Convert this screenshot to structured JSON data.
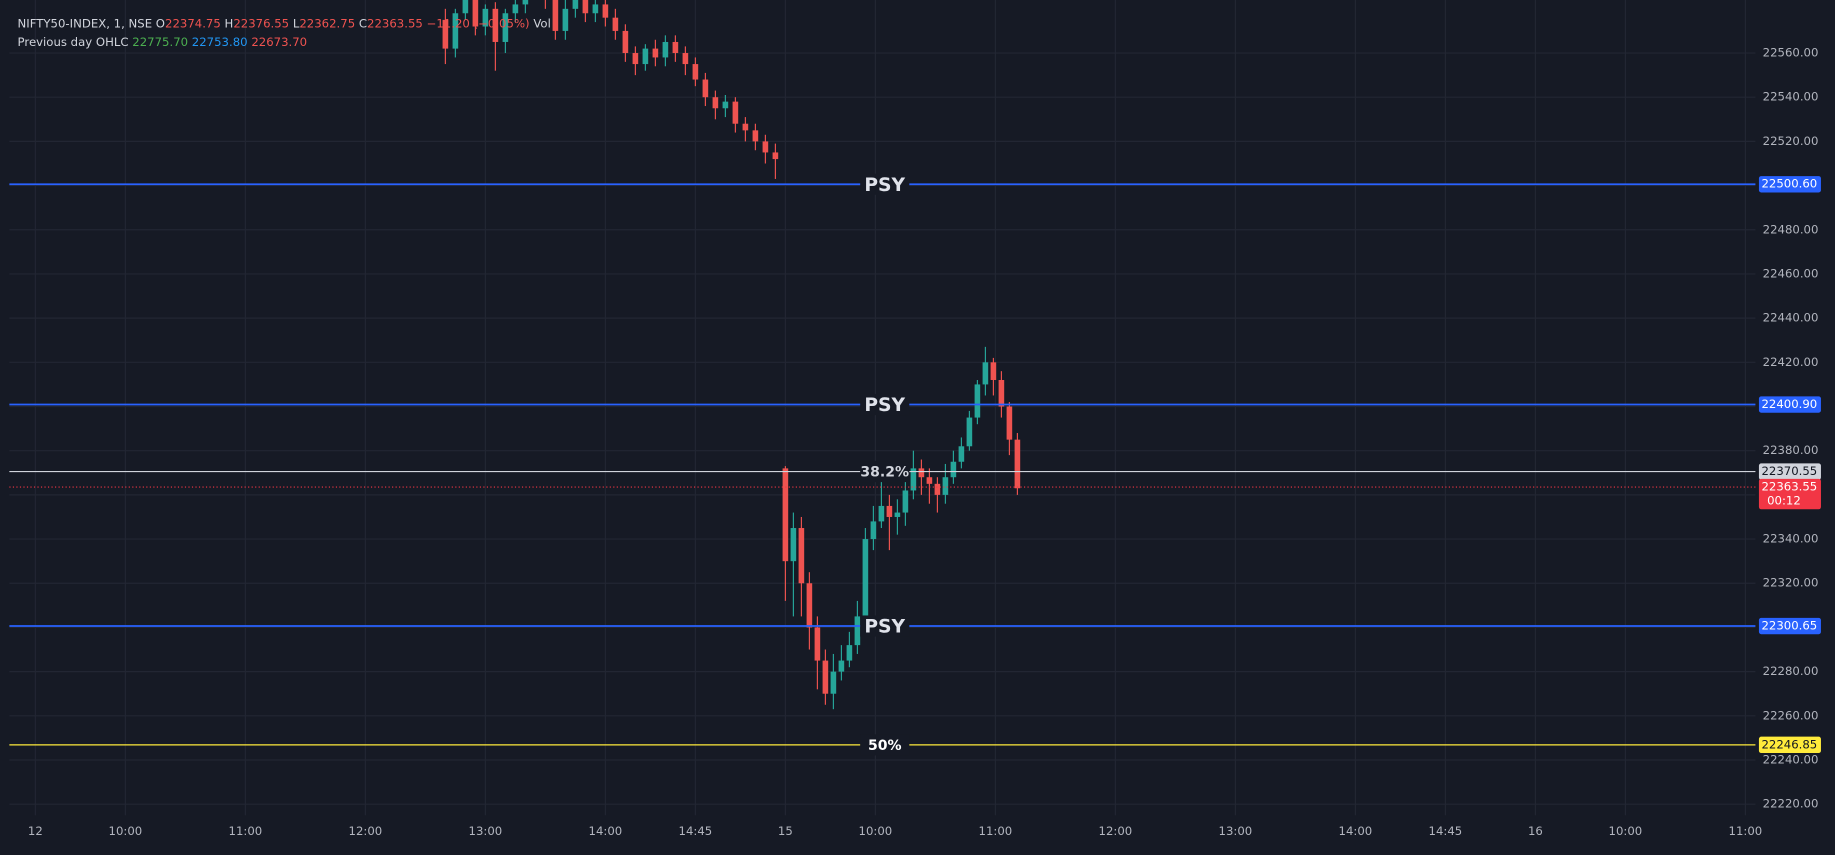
{
  "chart_data": {
    "type": "candlestick",
    "header": {
      "symbol": "NIFTY50-INDEX, 1, NSE",
      "o_label": "O",
      "o_value": "22374.75",
      "h_label": "H",
      "h_value": "22376.55",
      "l_label": "L",
      "l_value": "22362.75",
      "c_label": "C",
      "c_value": "22363.55",
      "change": "−11.20 (−0.05%)",
      "vol_label": "Vol",
      "prev_label": "Previous day OHLC",
      "prev_values": [
        "22775.70",
        "22753.80",
        "22673.70"
      ],
      "prev_colors": [
        "#4caf50",
        "#2196f3",
        "#ef5350"
      ]
    },
    "x": [
      205,
      210,
      215,
      220,
      225,
      230,
      235,
      240,
      245,
      250,
      255,
      260,
      265,
      270,
      275,
      280,
      285,
      290,
      295,
      300,
      305,
      310,
      315,
      320,
      325,
      330,
      335,
      340,
      345,
      350,
      355,
      360,
      365,
      370,
      375,
      379,
      383,
      387,
      391,
      395,
      399,
      403,
      407,
      411,
      415,
      419,
      423,
      427,
      431,
      435,
      439,
      443,
      447,
      451,
      455,
      459,
      463,
      467,
      471,
      475,
      479,
      483,
      487,
      491
    ],
    "open": [
      22575,
      22562,
      22578,
      22585,
      22572,
      22580,
      22565,
      22578,
      22582,
      22588,
      22590,
      22584,
      22570,
      22580,
      22586,
      22578,
      22582,
      22576,
      22570,
      22560,
      22555,
      22562,
      22558,
      22565,
      22560,
      22555,
      22548,
      22540,
      22535,
      22538,
      22528,
      22525,
      22520,
      22515,
      22372,
      22330,
      22345,
      22320,
      22300,
      22285,
      22270,
      22280,
      22285,
      22292,
      22305,
      22340,
      22348,
      22355,
      22350,
      22352,
      22362,
      22372,
      22368,
      22365,
      22360,
      22368,
      22375,
      22382,
      22395,
      22410,
      22420,
      22412,
      22400,
      22385
    ],
    "high": [
      22580,
      22580,
      22588,
      22590,
      22582,
      22583,
      22580,
      22585,
      22592,
      22594,
      22594,
      22588,
      22584,
      22590,
      22590,
      22585,
      22586,
      22580,
      22573,
      22563,
      22564,
      22566,
      22568,
      22568,
      22563,
      22558,
      22551,
      22543,
      22541,
      22540,
      22531,
      22528,
      22523,
      22519,
      22373,
      22352,
      22350,
      22325,
      22305,
      22290,
      22288,
      22292,
      22298,
      22312,
      22345,
      22355,
      22372,
      22360,
      22358,
      22368,
      22380,
      22376,
      22372,
      22368,
      22374,
      22380,
      22386,
      22398,
      22412,
      22427,
      22422,
      22416,
      22402,
      22388
    ],
    "low": [
      22555,
      22558,
      22575,
      22568,
      22568,
      22552,
      22560,
      22574,
      22578,
      22584,
      22580,
      22566,
      22566,
      22576,
      22574,
      22574,
      22572,
      22566,
      22556,
      22550,
      22552,
      22554,
      22554,
      22556,
      22550,
      22545,
      22536,
      22530,
      22531,
      22524,
      22520,
      22516,
      22510,
      22503,
      22312,
      22305,
      22305,
      22290,
      22272,
      22265,
      22263,
      22276,
      22282,
      22288,
      22300,
      22335,
      22345,
      22335,
      22342,
      22346,
      22358,
      22360,
      22356,
      22352,
      22356,
      22365,
      22372,
      22380,
      22392,
      22405,
      22405,
      22395,
      22378,
      22360
    ],
    "close": [
      22562,
      22578,
      22585,
      22572,
      22580,
      22565,
      22578,
      22582,
      22588,
      22590,
      22584,
      22570,
      22580,
      22586,
      22578,
      22582,
      22576,
      22570,
      22560,
      22555,
      22562,
      22558,
      22565,
      22560,
      22555,
      22548,
      22540,
      22535,
      22538,
      22528,
      22525,
      22520,
      22515,
      22512,
      22330,
      22345,
      22320,
      22300,
      22285,
      22270,
      22280,
      22285,
      22292,
      22305,
      22340,
      22348,
      22355,
      22350,
      22352,
      22362,
      22372,
      22368,
      22365,
      22360,
      22368,
      22375,
      22382,
      22395,
      22410,
      22420,
      22412,
      22400,
      22385,
      22363
    ],
    "up_color": "#26a69a",
    "down_color": "#ef5350",
    "xlim": [
      -13,
      860
    ],
    "xticks": [
      {
        "value": 0,
        "label": "12"
      },
      {
        "value": 45,
        "label": "10:00"
      },
      {
        "value": 105,
        "label": "11:00"
      },
      {
        "value": 165,
        "label": "12:00"
      },
      {
        "value": 225,
        "label": "13:00"
      },
      {
        "value": 285,
        "label": "14:00"
      },
      {
        "value": 330,
        "label": "14:45"
      },
      {
        "value": 375,
        "label": "15"
      },
      {
        "value": 420,
        "label": "10:00"
      },
      {
        "value": 480,
        "label": "11:00"
      },
      {
        "value": 540,
        "label": "12:00"
      },
      {
        "value": 600,
        "label": "13:00"
      },
      {
        "value": 660,
        "label": "14:00"
      },
      {
        "value": 705,
        "label": "14:45"
      },
      {
        "value": 750,
        "label": "16"
      },
      {
        "value": 795,
        "label": "10:00"
      },
      {
        "value": 855,
        "label": "11:00"
      }
    ],
    "ylim": [
      22215,
      22584
    ],
    "yticks": [
      {
        "value": 22220,
        "label": "22220.00"
      },
      {
        "value": 22240,
        "label": "22240.00"
      },
      {
        "value": 22260,
        "label": "22260.00"
      },
      {
        "value": 22280,
        "label": "22280.00"
      },
      {
        "value": 22300,
        "label": "22300.00"
      },
      {
        "value": 22320,
        "label": "22320.00"
      },
      {
        "value": 22340,
        "label": "22340.00"
      },
      {
        "value": 22360,
        "label": "22360.00"
      },
      {
        "value": 22380,
        "label": "22380.00"
      },
      {
        "value": 22400,
        "label": "22400.00"
      },
      {
        "value": 22420,
        "label": "22420.00"
      },
      {
        "value": 22440,
        "label": "22440.00"
      },
      {
        "value": 22460,
        "label": "22460.00"
      },
      {
        "value": 22480,
        "label": "22480.00"
      },
      {
        "value": 22500,
        "label": "22500.00"
      },
      {
        "value": 22520,
        "label": "22520.00"
      },
      {
        "value": 22540,
        "label": "22540.00"
      },
      {
        "value": 22560,
        "label": "22560.00"
      }
    ],
    "grid": true,
    "levels": {
      "labels": [
        "PSY",
        "PSY",
        "38.2%",
        "PSY",
        "50%"
      ],
      "values": [
        22500.6,
        22400.9,
        22370.55,
        22300.65,
        22246.85
      ],
      "value_labels": [
        "22500.60",
        "22400.90",
        "22370.55",
        "22300.65",
        "22246.85"
      ],
      "colors": [
        "#2962ff",
        "#2962ff",
        "#d1d4dc",
        "#2962ff",
        "#ffeb3b"
      ]
    },
    "last_price": {
      "value": 22363.55,
      "label": "22363.55",
      "countdown": "00:12",
      "color": "#f23645"
    }
  }
}
